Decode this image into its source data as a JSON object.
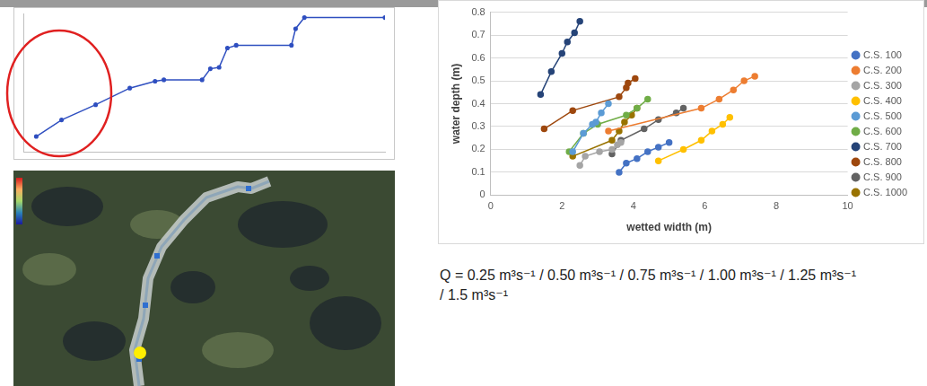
{
  "chart_data": [
    {
      "type": "line",
      "x_label": "wetted width (m)",
      "y_label": "water depth (m)",
      "xlim": [
        0,
        10
      ],
      "xticks": [
        0,
        2,
        4,
        6,
        8,
        10
      ],
      "ylim": [
        0,
        0.8
      ],
      "yticks": [
        0,
        0.1,
        0.2,
        0.3,
        0.4,
        0.5,
        0.6,
        0.7,
        0.8
      ],
      "grid": "y",
      "legend": "right",
      "marker": "circle",
      "line_style": "solid",
      "annotations": [
        "Q = 0.25 m³s⁻¹ / 0.50 m³s⁻¹ / 0.75 m³s⁻¹ / 1.00 m³s⁻¹ / 1.25 m³s⁻¹ / 1.5 m³s⁻¹"
      ],
      "series": [
        {
          "name": "C.S. 100",
          "color": "#4472c4",
          "x": [
            3.6,
            3.8,
            4.1,
            4.4,
            4.7,
            5.0
          ],
          "values": [
            0.1,
            0.14,
            0.16,
            0.19,
            0.21,
            0.23
          ]
        },
        {
          "name": "C.S. 200",
          "color": "#ed7d31",
          "x": [
            3.3,
            5.9,
            6.4,
            6.8,
            7.1,
            7.4
          ],
          "values": [
            0.28,
            0.38,
            0.42,
            0.46,
            0.5,
            0.52
          ]
        },
        {
          "name": "C.S. 300",
          "color": "#a5a5a5",
          "x": [
            2.5,
            2.65,
            3.05,
            3.4,
            3.55,
            3.65
          ],
          "values": [
            0.13,
            0.17,
            0.19,
            0.2,
            0.22,
            0.23
          ]
        },
        {
          "name": "C.S. 400",
          "color": "#ffc000",
          "x": [
            4.7,
            5.4,
            5.9,
            6.2,
            6.5,
            6.7
          ],
          "values": [
            0.15,
            0.2,
            0.24,
            0.28,
            0.31,
            0.34
          ]
        },
        {
          "name": "C.S. 500",
          "color": "#5b9bd5",
          "x": [
            2.3,
            2.6,
            2.85,
            2.95,
            3.1,
            3.3
          ],
          "values": [
            0.19,
            0.27,
            0.31,
            0.32,
            0.36,
            0.4
          ]
        },
        {
          "name": "C.S. 600",
          "color": "#70ad47",
          "x": [
            2.2,
            2.6,
            3.0,
            3.8,
            4.1,
            4.4
          ],
          "values": [
            0.19,
            0.27,
            0.31,
            0.35,
            0.38,
            0.42
          ]
        },
        {
          "name": "C.S. 700",
          "color": "#264478",
          "x": [
            1.4,
            1.7,
            2.0,
            2.15,
            2.35,
            2.5
          ],
          "values": [
            0.44,
            0.54,
            0.62,
            0.67,
            0.71,
            0.76
          ]
        },
        {
          "name": "C.S. 800",
          "color": "#9e480e",
          "x": [
            1.5,
            2.3,
            3.6,
            3.8,
            3.85,
            4.05
          ],
          "values": [
            0.29,
            0.37,
            0.43,
            0.47,
            0.49,
            0.51
          ]
        },
        {
          "name": "C.S. 900",
          "color": "#636363",
          "x": [
            3.4,
            3.65,
            4.3,
            4.7,
            5.2,
            5.4
          ],
          "values": [
            0.18,
            0.24,
            0.29,
            0.33,
            0.36,
            0.38
          ]
        },
        {
          "name": "C.S. 1000",
          "color": "#997300",
          "x": [
            2.3,
            3.4,
            3.6,
            3.75,
            3.95,
            4.1
          ],
          "values": [
            0.17,
            0.24,
            0.28,
            0.32,
            0.35,
            0.38
          ]
        }
      ]
    },
    {
      "type": "line",
      "x": [
        250,
        740,
        1400,
        2060,
        2550,
        2720,
        3460,
        3620,
        3790,
        3950,
        4120,
        5190,
        5270,
        5440,
        7000
      ],
      "values": [
        11,
        23,
        34,
        46,
        51,
        52,
        52,
        60,
        61,
        75,
        77,
        77,
        89,
        97,
        97
      ],
      "color": "#2f4fc0",
      "marker": "circle",
      "line_style": "solid",
      "xlim": [
        0,
        7000
      ],
      "ylim": [
        0,
        100
      ],
      "tick_labels": false,
      "grid": false
    }
  ]
}
